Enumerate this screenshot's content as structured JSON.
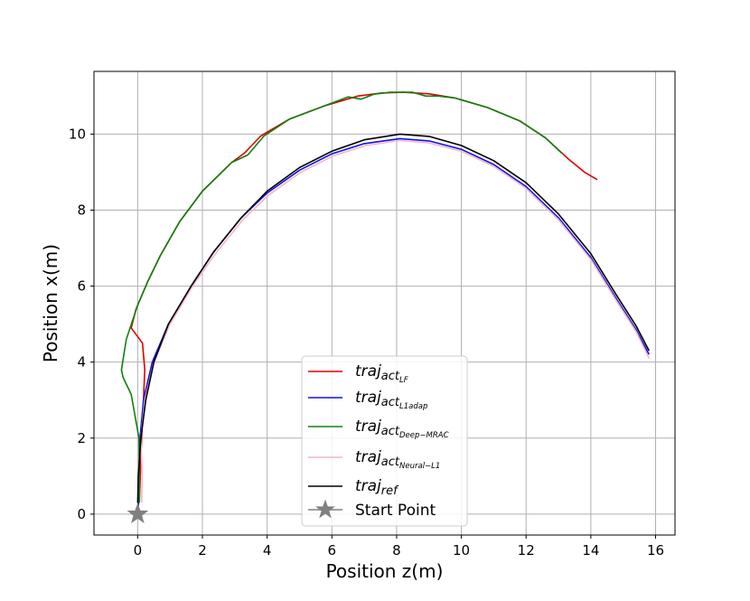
{
  "chart_data": {
    "type": "line",
    "xlabel": "Position z(m)",
    "ylabel": "Position  x(m)",
    "xlim": [
      -1.35,
      16.6
    ],
    "ylim": [
      -0.55,
      11.65
    ],
    "x_ticks": [
      0,
      2,
      4,
      6,
      8,
      10,
      12,
      14,
      16
    ],
    "y_ticks": [
      0,
      2,
      4,
      6,
      8,
      10
    ],
    "grid": true,
    "legend_placement": "lower-center",
    "series": [
      {
        "name": "traj_act_LF",
        "legend_main": "traj",
        "legend_sub": "act",
        "legend_subsub": "LF",
        "color": "#e00000",
        "points": [
          [
            0.05,
            0.3
          ],
          [
            0.08,
            1.0
          ],
          [
            0.12,
            2.0
          ],
          [
            0.18,
            3.0
          ],
          [
            0.22,
            3.8
          ],
          [
            0.15,
            4.5
          ],
          [
            -0.2,
            4.9
          ],
          [
            -0.05,
            5.4
          ],
          [
            0.3,
            6.1
          ],
          [
            0.7,
            6.8
          ],
          [
            1.3,
            7.7
          ],
          [
            2.0,
            8.5
          ],
          [
            2.9,
            9.25
          ],
          [
            3.3,
            9.5
          ],
          [
            3.8,
            9.95
          ],
          [
            4.7,
            10.4
          ],
          [
            5.8,
            10.75
          ],
          [
            6.8,
            11.0
          ],
          [
            7.5,
            11.08
          ],
          [
            8.2,
            11.1
          ],
          [
            9.0,
            11.06
          ],
          [
            9.8,
            10.95
          ],
          [
            10.8,
            10.7
          ],
          [
            11.8,
            10.35
          ],
          [
            12.6,
            9.9
          ],
          [
            13.3,
            9.35
          ],
          [
            13.8,
            9.0
          ],
          [
            14.2,
            8.8
          ]
        ]
      },
      {
        "name": "traj_act_L1adap",
        "legend_main": "traj",
        "legend_sub": "act",
        "legend_subsub": "L1adap",
        "color": "#1010e8",
        "points": [
          [
            0.02,
            0.2
          ],
          [
            0.04,
            1.0
          ],
          [
            0.07,
            2.0
          ],
          [
            0.18,
            3.0
          ],
          [
            0.45,
            4.0
          ],
          [
            0.95,
            5.0
          ],
          [
            1.65,
            6.0
          ],
          [
            2.35,
            6.9
          ],
          [
            3.2,
            7.8
          ],
          [
            4.0,
            8.45
          ],
          [
            5.0,
            9.05
          ],
          [
            6.0,
            9.48
          ],
          [
            7.0,
            9.75
          ],
          [
            8.1,
            9.88
          ],
          [
            9.0,
            9.82
          ],
          [
            10.0,
            9.6
          ],
          [
            11.0,
            9.2
          ],
          [
            12.0,
            8.62
          ],
          [
            13.0,
            7.8
          ],
          [
            14.0,
            6.75
          ],
          [
            14.8,
            5.65
          ],
          [
            15.4,
            4.85
          ],
          [
            15.8,
            4.2
          ]
        ]
      },
      {
        "name": "traj_act_Deep-MRAC",
        "legend_main": "traj",
        "legend_sub": "act",
        "legend_subsub": "Deep−MRAC",
        "color": "#108010",
        "points": [
          [
            0.05,
            0.3
          ],
          [
            0.05,
            1.0
          ],
          [
            0.04,
            2.0
          ],
          [
            -0.2,
            3.15
          ],
          [
            -0.45,
            3.6
          ],
          [
            -0.5,
            3.8
          ],
          [
            -0.35,
            4.6
          ],
          [
            0.0,
            5.5
          ],
          [
            0.3,
            6.1
          ],
          [
            0.7,
            6.8
          ],
          [
            1.3,
            7.7
          ],
          [
            2.0,
            8.5
          ],
          [
            2.9,
            9.25
          ],
          [
            3.4,
            9.45
          ],
          [
            3.9,
            9.95
          ],
          [
            4.7,
            10.4
          ],
          [
            5.8,
            10.75
          ],
          [
            6.5,
            10.98
          ],
          [
            6.9,
            10.92
          ],
          [
            7.3,
            11.05
          ],
          [
            7.8,
            11.1
          ],
          [
            8.5,
            11.1
          ],
          [
            8.9,
            11.0
          ],
          [
            9.3,
            11.0
          ],
          [
            9.8,
            10.95
          ],
          [
            10.8,
            10.7
          ],
          [
            11.8,
            10.35
          ],
          [
            12.6,
            9.9
          ],
          [
            13.1,
            9.5
          ]
        ]
      },
      {
        "name": "traj_act_Neural-L1",
        "legend_main": "traj",
        "legend_sub": "act",
        "legend_subsub": "Neural−L1",
        "color": "#f4b6c8",
        "points": [
          [
            0.12,
            0.3
          ],
          [
            0.14,
            1.0
          ],
          [
            0.1,
            2.0
          ],
          [
            0.22,
            3.0
          ],
          [
            0.5,
            4.0
          ],
          [
            1.0,
            5.0
          ],
          [
            1.7,
            6.0
          ],
          [
            2.4,
            6.85
          ],
          [
            3.25,
            7.75
          ],
          [
            4.05,
            8.4
          ],
          [
            5.05,
            9.0
          ],
          [
            6.05,
            9.43
          ],
          [
            7.05,
            9.7
          ],
          [
            8.1,
            9.83
          ],
          [
            9.0,
            9.77
          ],
          [
            10.0,
            9.55
          ],
          [
            11.0,
            9.15
          ],
          [
            12.0,
            8.57
          ],
          [
            13.0,
            7.75
          ],
          [
            14.0,
            6.7
          ],
          [
            14.8,
            5.6
          ],
          [
            15.4,
            4.8
          ],
          [
            15.8,
            4.1
          ]
        ]
      },
      {
        "name": "traj_ref",
        "legend_main": "traj",
        "legend_sub": "ref",
        "legend_subsub": "",
        "color": "#000000",
        "points": [
          [
            0.0,
            0.3
          ],
          [
            0.02,
            1.0
          ],
          [
            0.1,
            2.0
          ],
          [
            0.25,
            3.0
          ],
          [
            0.5,
            4.0
          ],
          [
            0.95,
            5.0
          ],
          [
            1.65,
            6.0
          ],
          [
            2.35,
            6.9
          ],
          [
            3.2,
            7.8
          ],
          [
            4.0,
            8.5
          ],
          [
            5.0,
            9.12
          ],
          [
            6.0,
            9.55
          ],
          [
            7.0,
            9.85
          ],
          [
            8.1,
            10.0
          ],
          [
            9.0,
            9.94
          ],
          [
            10.0,
            9.7
          ],
          [
            11.0,
            9.3
          ],
          [
            12.0,
            8.72
          ],
          [
            13.0,
            7.9
          ],
          [
            14.0,
            6.85
          ],
          [
            14.8,
            5.75
          ],
          [
            15.4,
            4.95
          ],
          [
            15.8,
            4.3
          ]
        ]
      }
    ],
    "start_point": {
      "name": "Start Point",
      "x": 0,
      "y": 0,
      "color": "#808080"
    }
  }
}
